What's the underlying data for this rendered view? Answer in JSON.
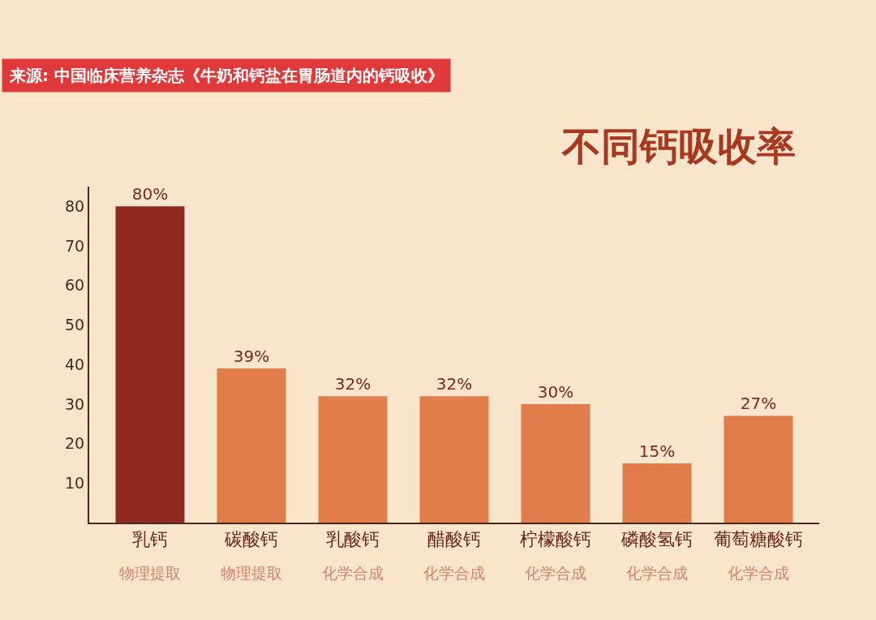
{
  "chart_data": {
    "type": "bar",
    "title": "不同钙吸收率",
    "annotations": [
      "来源: 中国临床营养杂志《牛奶和钙盐在胃肠道内的钙吸收》",
      "物理提取",
      "物理提取",
      "化学合成",
      "化学合成",
      "化学合成",
      "化学合成",
      "化学合成"
    ],
    "categories": [
      "乳钙",
      "碳酸钙",
      "乳酸钙",
      "醋酸钙",
      "柠檬酸钙",
      "磷酸氢钙",
      "葡萄糖酸钙"
    ],
    "values": [
      80,
      39,
      32,
      32,
      30,
      15,
      27
    ],
    "value_labels": [
      "80%",
      "39%",
      "32%",
      "32%",
      "30%",
      "15%",
      "27%"
    ],
    "colors": [
      "#8e2a1f",
      "#e17c4b",
      "#e17c4b",
      "#e17c4b",
      "#e17c4b",
      "#e17c4b",
      "#e17c4b"
    ],
    "ylim": [
      0,
      85
    ],
    "yticks": [
      10,
      20,
      30,
      40,
      50,
      60,
      70,
      80
    ],
    "grid": false,
    "legend": false
  }
}
